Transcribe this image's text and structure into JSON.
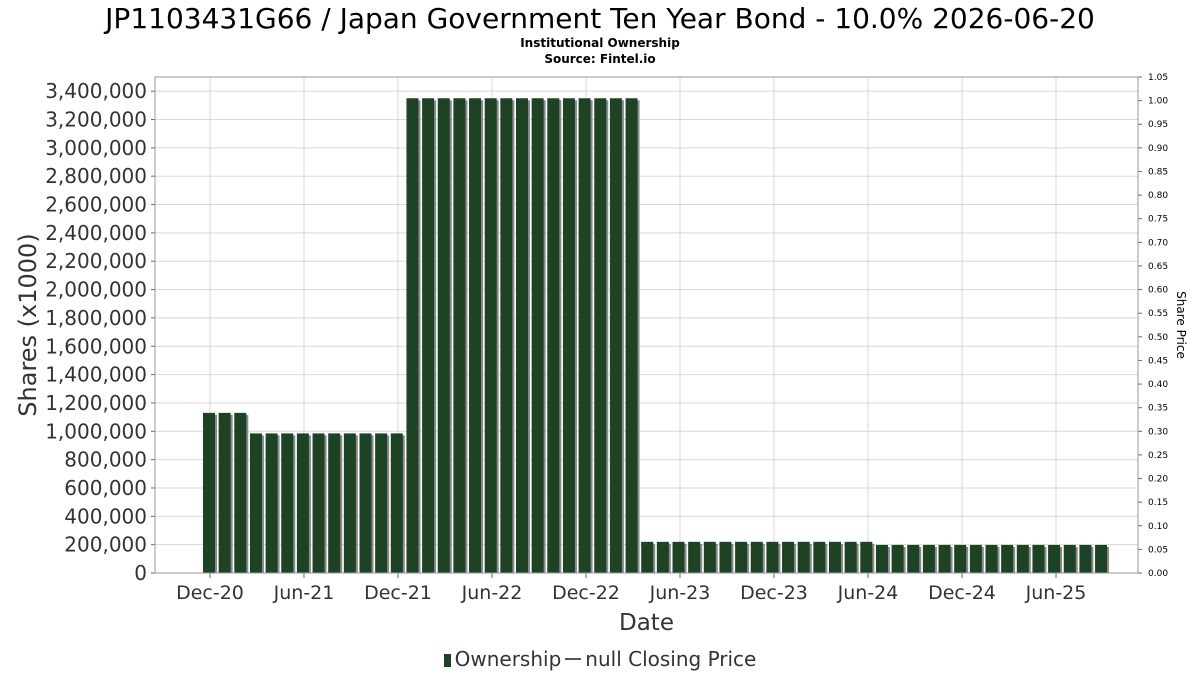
{
  "header": {
    "title": "JP1103431G66 / Japan Government Ten Year Bond - 10.0% 2026-06-20",
    "subtitle1": "Institutional Ownership",
    "subtitle2": "Source: Fintel.io"
  },
  "legend": {
    "ownership_label": "Ownership",
    "price_label": "null Closing Price"
  },
  "colors": {
    "bar": "#1d4325",
    "bar_shadow": "#8a8a8a",
    "grid": "#d8d8d8",
    "axis_text": "#333333"
  },
  "chart_data": {
    "type": "bar",
    "xlabel": "Date",
    "ylabel": "Shares (x1000)",
    "y2label": "Share Price",
    "ylim": [
      0,
      3500000
    ],
    "y2lim": [
      0,
      1.05
    ],
    "yticks": [
      "0",
      "200,000",
      "400,000",
      "600,000",
      "800,000",
      "1,000,000",
      "1,200,000",
      "1,400,000",
      "1,600,000",
      "1,800,000",
      "2,000,000",
      "2,200,000",
      "2,400,000",
      "2,600,000",
      "2,800,000",
      "3,000,000",
      "3,200,000",
      "3,400,000"
    ],
    "y2ticks": [
      "0.00",
      "0.05",
      "0.10",
      "0.15",
      "0.20",
      "0.25",
      "0.30",
      "0.35",
      "0.40",
      "0.45",
      "0.50",
      "0.55",
      "0.60",
      "0.65",
      "0.70",
      "0.75",
      "0.80",
      "0.85",
      "0.90",
      "0.95",
      "1.00",
      "1.05"
    ],
    "xticks": [
      "Dec-20",
      "Jun-21",
      "Dec-21",
      "Jun-22",
      "Dec-22",
      "Jun-23",
      "Dec-23",
      "Jun-24",
      "Dec-24",
      "Jun-25"
    ],
    "grid": true,
    "legend_position": "bottom",
    "series": [
      {
        "name": "Ownership",
        "values": [
          1130000,
          1130000,
          1130000,
          985000,
          985000,
          985000,
          985000,
          985000,
          985000,
          985000,
          985000,
          985000,
          985000,
          3350000,
          3350000,
          3350000,
          3350000,
          3350000,
          3350000,
          3350000,
          3350000,
          3350000,
          3350000,
          3350000,
          3350000,
          3350000,
          3350000,
          3350000,
          220000,
          220000,
          220000,
          220000,
          220000,
          220000,
          220000,
          220000,
          220000,
          220000,
          220000,
          220000,
          220000,
          220000,
          220000,
          198000,
          198000,
          198000,
          198000,
          198000,
          198000,
          198000,
          198000,
          198000,
          198000,
          198000,
          198000,
          198000,
          198000,
          198000
        ]
      }
    ]
  }
}
